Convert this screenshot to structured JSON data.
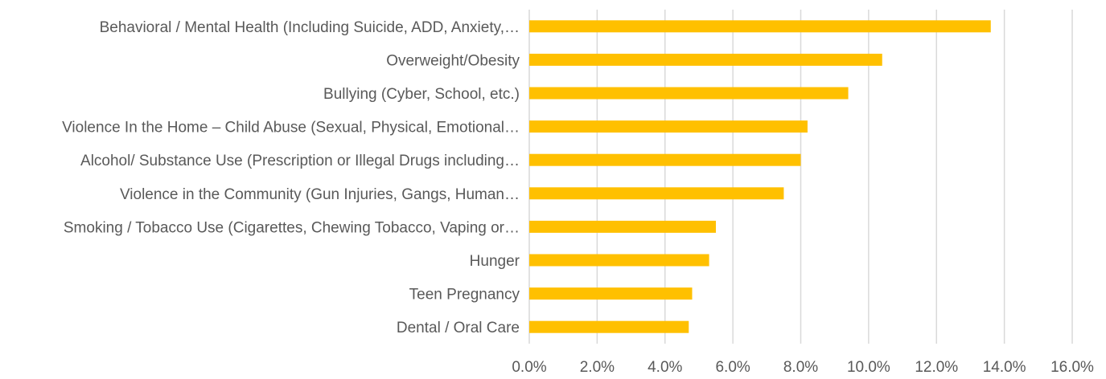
{
  "chart_data": {
    "type": "bar",
    "orientation": "horizontal",
    "title": "",
    "xlabel": "",
    "ylabel": "",
    "categories": [
      "Behavioral / Mental Health (Including Suicide, ADD, Anxiety,…",
      "Overweight/Obesity",
      "Bullying (Cyber, School, etc.)",
      "Violence In the Home – Child Abuse (Sexual, Physical, Emotional…",
      "Alcohol/ Substance Use (Prescription or Illegal Drugs including…",
      "Violence in the Community (Gun Injuries, Gangs, Human…",
      "Smoking / Tobacco Use (Cigarettes, Chewing Tobacco, Vaping or…",
      "Hunger",
      "Teen Pregnancy",
      "Dental / Oral Care"
    ],
    "values": [
      13.6,
      10.4,
      9.4,
      8.2,
      8.0,
      7.5,
      5.5,
      5.3,
      4.8,
      4.7
    ],
    "xlim": [
      0,
      16
    ],
    "xticks": [
      "0.0%",
      "2.0%",
      "4.0%",
      "6.0%",
      "8.0%",
      "10.0%",
      "12.0%",
      "14.0%",
      "16.0%"
    ],
    "grid": true,
    "legend": "none",
    "bar_color": "#FFC000"
  }
}
